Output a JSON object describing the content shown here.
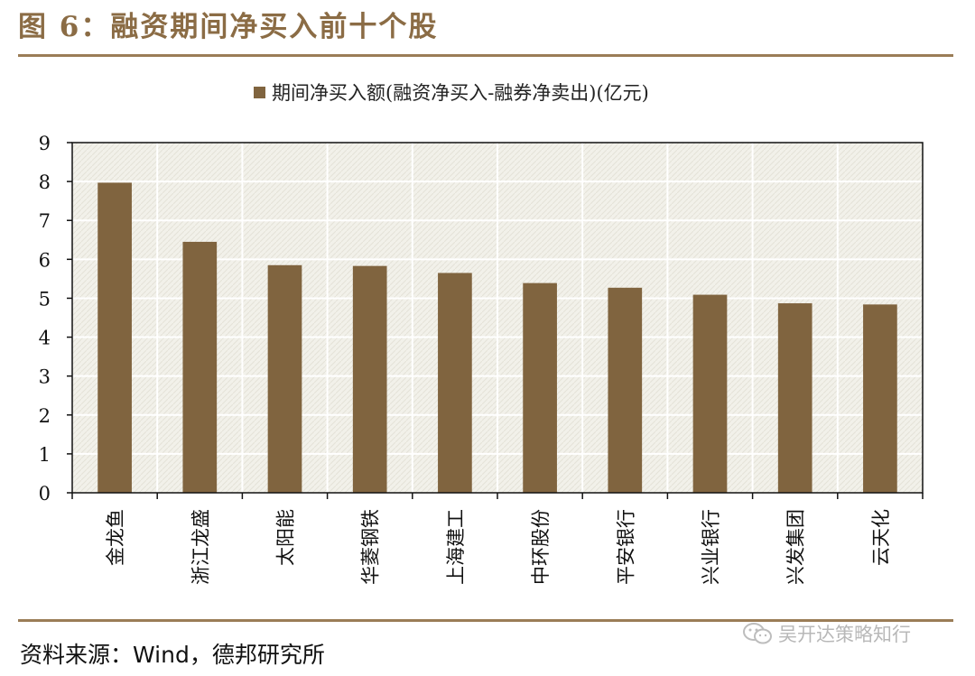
{
  "figure": {
    "title": "图 6：融资期间净买入前十个股",
    "source": "资料来源：Wind，德邦研究所",
    "watermark": "吴开达策略知行"
  },
  "colors": {
    "bar": "#80643f",
    "title": "#8b6c45",
    "rule": "#9b7d57",
    "plot_bg": "#f2f1ea",
    "grid": "#ffffff"
  },
  "chart_data": {
    "type": "bar",
    "title": "",
    "xlabel": "",
    "ylabel": "",
    "legend_position": "top",
    "grid": true,
    "ylim": [
      0,
      9
    ],
    "yticks": [
      0,
      1,
      2,
      3,
      4,
      5,
      6,
      7,
      8,
      9
    ],
    "categories": [
      "金龙鱼",
      "浙江龙盛",
      "太阳能",
      "华菱钢铁",
      "上海建工",
      "中环股份",
      "平安银行",
      "兴业银行",
      "兴发集团",
      "云天化"
    ],
    "series": [
      {
        "name": "期间净买入额(融资净买入-融券净卖出)(亿元)",
        "values": [
          7.97,
          6.45,
          5.85,
          5.83,
          5.65,
          5.39,
          5.27,
          5.09,
          4.87,
          4.84
        ]
      }
    ]
  }
}
